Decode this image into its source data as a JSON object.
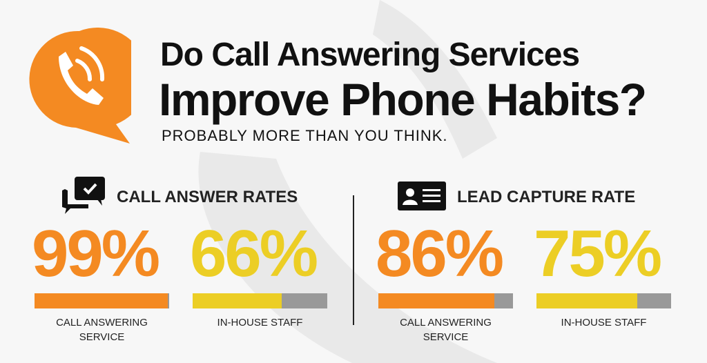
{
  "header": {
    "title_line1": "Do Call Answering Services",
    "title_line2": "Improve Phone Habits?",
    "subtitle": "PROBABLY MORE THAN YOU THINK."
  },
  "colors": {
    "orange": "#f48a22",
    "yellow": "#ecce25",
    "gray": "#999999",
    "background": "#f7f7f7"
  },
  "icons": {
    "logo": "phone-speech-bubble-icon",
    "left": "chat-check-icon",
    "right": "id-card-icon"
  },
  "chart_data": [
    {
      "type": "bar",
      "title": "CALL ANSWER RATES",
      "categories": [
        "CALL ANSWERING SERVICE",
        "IN-HOUSE STAFF"
      ],
      "values": [
        99,
        66
      ],
      "value_labels": [
        "99%",
        "66%"
      ],
      "ylim": [
        0,
        100
      ]
    },
    {
      "type": "bar",
      "title": "LEAD CAPTURE RATE",
      "categories": [
        "CALL ANSWERING SERVICE",
        "IN-HOUSE STAFF"
      ],
      "values": [
        86,
        75
      ],
      "value_labels": [
        "86%",
        "75%"
      ],
      "ylim": [
        0,
        100
      ]
    }
  ]
}
